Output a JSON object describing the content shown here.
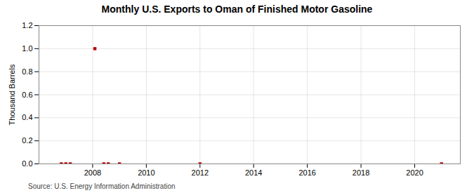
{
  "chart_data": {
    "type": "scatter",
    "title": "Monthly U.S. Exports to Oman of Finished Motor Gasoline",
    "ylabel": "Thousand Barrels",
    "source": "Source: U.S. Energy Information Administration",
    "x": [
      2006.833,
      2007.0,
      2007.167,
      2008.083,
      2008.417,
      2008.583,
      2009.0,
      2012.0,
      2021.0
    ],
    "values": [
      0.0,
      0.0,
      0.0,
      1.0,
      0.0,
      0.0,
      0.0,
      0.0,
      0.0
    ],
    "color": "#bb0000",
    "marker": "square",
    "xlim": [
      2006.0,
      2021.7
    ],
    "xticks": [
      2008,
      2010,
      2012,
      2014,
      2016,
      2018,
      2020
    ],
    "ylim": [
      0.0,
      1.2
    ],
    "yticks": [
      {
        "value": 0.0,
        "label": "0.0"
      },
      0.2,
      0.4,
      0.6,
      0.8,
      {
        "value": 1.0,
        "label": "1.0"
      },
      1.2
    ],
    "grid": true
  }
}
